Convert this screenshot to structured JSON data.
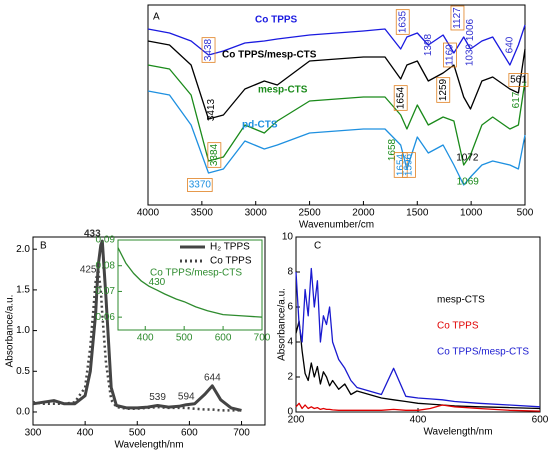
{
  "chart_data": [
    {
      "type": "line",
      "label": "A",
      "xlabel": "Wavenumber/cm",
      "xlim": [
        4000,
        500
      ],
      "xticks": [
        4000,
        3500,
        3000,
        2500,
        2000,
        1500,
        1000,
        500
      ],
      "ylim": [
        0,
        100
      ],
      "x": [
        4000,
        3800,
        3600,
        3438,
        3300,
        3100,
        2920,
        2800,
        2500,
        2000,
        1800,
        1654,
        1596,
        1500,
        1398,
        1260,
        1160,
        1069,
        1006,
        900,
        800,
        640,
        561,
        500
      ],
      "series": [
        {
          "name": "Co TPPS",
          "color": "#1a1ae0",
          "values": [
            88,
            86,
            82,
            75,
            77,
            81,
            82,
            83,
            85,
            87,
            88,
            78,
            84,
            86,
            80,
            85,
            76,
            84,
            78,
            82,
            84,
            70,
            80,
            90
          ]
        },
        {
          "name": "Co TPPS/mesp-CTS",
          "color": "#000000",
          "values": [
            82,
            80,
            70,
            43,
            45,
            58,
            62,
            60,
            72,
            74,
            74,
            63,
            70,
            72,
            62,
            66,
            70,
            54,
            48,
            62,
            64,
            58,
            56,
            78
          ]
        },
        {
          "name": "mesp-CTS",
          "color": "#1a8a1a",
          "values": [
            70,
            68,
            55,
            22,
            24,
            40,
            36,
            42,
            52,
            54,
            54,
            45,
            38,
            50,
            40,
            44,
            42,
            20,
            25,
            40,
            44,
            38,
            40,
            62
          ]
        },
        {
          "name": "pd-CTS",
          "color": "#1e90e0",
          "values": [
            57,
            55,
            40,
            16,
            18,
            32,
            28,
            30,
            36,
            38,
            38,
            30,
            18,
            34,
            26,
            30,
            20,
            10,
            14,
            20,
            22,
            20,
            18,
            35
          ]
        }
      ],
      "annotations": [
        {
          "label": "3438",
          "x": 3438,
          "color": "#3030d0"
        },
        {
          "label": "1635",
          "x": 1635,
          "color": "#3030d0"
        },
        {
          "label": "1398",
          "x": 1398,
          "color": "#3030d0"
        },
        {
          "label": "1127",
          "x": 1127,
          "color": "#3030d0"
        },
        {
          "label": "1006",
          "x": 1006,
          "color": "#3030d0"
        },
        {
          "label": "640",
          "x": 640,
          "color": "#3030d0"
        },
        {
          "label": "1160",
          "x": 1160,
          "color": "#3030d0"
        },
        {
          "label": "1039",
          "x": 1039,
          "color": "#3030d0"
        },
        {
          "label": "3413",
          "x": 3413,
          "color": "#000000"
        },
        {
          "label": "1654",
          "x": 1654,
          "color": "#000000"
        },
        {
          "label": "1259",
          "x": 1259,
          "color": "#000000"
        },
        {
          "label": "561",
          "x": 561,
          "color": "#000000"
        },
        {
          "label": "1072",
          "x": 1072,
          "color": "#000000"
        },
        {
          "label": "617",
          "x": 617,
          "color": "#1a8a1a"
        },
        {
          "label": "3384",
          "x": 3384,
          "color": "#1a8a1a"
        },
        {
          "label": "3370",
          "x": 3370,
          "color": "#1e90e0"
        },
        {
          "label": "1658",
          "x": 1658,
          "color": "#1a8a1a"
        },
        {
          "label": "1654",
          "x": 1654,
          "color": "#1e90e0"
        },
        {
          "label": "1596",
          "x": 1596,
          "color": "#1e90e0"
        },
        {
          "label": "1069",
          "x": 1069,
          "color": "#1a8a1a"
        }
      ]
    },
    {
      "type": "line",
      "label": "B",
      "xlabel": "Wavelength/nm",
      "ylabel": "Absorbance/a.u.",
      "xlim": [
        300,
        745
      ],
      "xticks": [
        300,
        400,
        500,
        600,
        700
      ],
      "ylim": [
        -0.16,
        2.15
      ],
      "yticks": [
        {
          "value": 0,
          "label": "0.0"
        },
        0.5,
        {
          "value": 1,
          "label": "1.0"
        },
        1.5,
        {
          "value": 2,
          "label": "2.0"
        }
      ],
      "x": [
        300,
        320,
        340,
        360,
        380,
        400,
        410,
        420,
        425,
        430,
        433,
        440,
        450,
        460,
        480,
        500,
        520,
        539,
        560,
        580,
        594,
        610,
        630,
        644,
        660,
        680,
        700
      ],
      "series": [
        {
          "name": "H₂ TPPS",
          "color": "#444444",
          "style": "solid",
          "values": [
            0.1,
            0.12,
            0.14,
            0.1,
            0.1,
            0.2,
            0.5,
            1.2,
            1.8,
            2.05,
            2.1,
            1.4,
            0.3,
            0.08,
            0.05,
            0.05,
            0.06,
            0.08,
            0.06,
            0.07,
            0.09,
            0.1,
            0.22,
            0.32,
            0.15,
            0.05,
            0.02
          ]
        },
        {
          "name": "Co TPPS",
          "color": "#444444",
          "style": "dotted",
          "values": [
            0.12,
            0.1,
            0.1,
            0.1,
            0.12,
            0.3,
            0.8,
            1.6,
            1.75,
            1.5,
            1.2,
            0.6,
            0.15,
            0.06,
            0.04,
            0.04,
            0.05,
            0.06,
            0.05,
            0.05,
            0.05,
            0.04,
            0.03,
            0.03,
            0.02,
            0.02,
            0.02
          ]
        }
      ],
      "annotations": [
        {
          "label": "433",
          "x": 433,
          "y": 2.1
        },
        {
          "label": "425",
          "x": 425,
          "y": 1.65
        },
        {
          "label": "539",
          "x": 539,
          "y": 0.08
        },
        {
          "label": "594",
          "x": 594,
          "y": 0.09
        },
        {
          "label": "644",
          "x": 644,
          "y": 0.32
        }
      ]
    },
    {
      "type": "line",
      "xlim": [
        330,
        700
      ],
      "xticks": [
        400,
        500,
        600,
        700
      ],
      "ylim": [
        0.055,
        0.09
      ],
      "yticks": [
        0.06,
        0.07,
        0.08,
        0.09
      ],
      "x": [
        330,
        350,
        370,
        390,
        410,
        430,
        450,
        480,
        500,
        530,
        560,
        600,
        650,
        700
      ],
      "series": [
        {
          "name": "Co TPPS/mesp-CTS",
          "color": "#2e8b2e",
          "values": [
            0.087,
            0.081,
            0.077,
            0.074,
            0.072,
            0.0705,
            0.069,
            0.067,
            0.066,
            0.064,
            0.0625,
            0.061,
            0.0605,
            0.06
          ]
        }
      ],
      "annotations": [
        {
          "label": "430",
          "x": 430,
          "y": 0.0705
        }
      ]
    },
    {
      "type": "line",
      "label": "C",
      "xlabel": "Wavelength/nm",
      "ylabel": "Absorbance/a.u.",
      "xlim": [
        200,
        600
      ],
      "xticks": [
        200,
        400,
        600
      ],
      "ylim": [
        0,
        10
      ],
      "yticks": [
        0,
        2,
        4,
        6,
        8,
        10
      ],
      "x": [
        200,
        205,
        210,
        215,
        220,
        225,
        230,
        235,
        240,
        245,
        250,
        255,
        260,
        270,
        280,
        290,
        300,
        320,
        340,
        360,
        380,
        400,
        420,
        440,
        460,
        500,
        550,
        600
      ],
      "series": [
        {
          "name": "mesp-CTS",
          "color": "#000000",
          "values": [
            4.5,
            5.2,
            3.5,
            2.2,
            1.8,
            2.8,
            2,
            2.6,
            1.6,
            2.3,
            2,
            1.5,
            1.8,
            1.3,
            1.6,
            1,
            1.2,
            1,
            0.8,
            0.7,
            0.6,
            0.5,
            0.45,
            0.4,
            0.35,
            0.3,
            0.25,
            0.2
          ]
        },
        {
          "name": "Co TPPS",
          "color": "#e00000",
          "values": [
            0.3,
            0.5,
            0.2,
            0.4,
            0.2,
            0.3,
            0.2,
            0.25,
            0.15,
            0.2,
            0.15,
            0.15,
            0.12,
            0.1,
            0.1,
            0.1,
            0.1,
            0.1,
            0.1,
            0.15,
            0.1,
            0.1,
            0.2,
            0.4,
            0.3,
            0.2,
            0.1,
            0.05
          ]
        },
        {
          "name": "Co TPPS/mesp-CTS",
          "color": "#1a1ad0",
          "values": [
            8,
            5,
            4,
            7,
            5.5,
            8.2,
            6,
            7.5,
            4,
            5.5,
            5,
            6,
            4,
            3,
            2.5,
            1.8,
            1.4,
            1.2,
            1,
            2.5,
            0.9,
            0.8,
            0.75,
            0.7,
            0.6,
            0.5,
            0.4,
            0.3
          ]
        }
      ]
    }
  ]
}
